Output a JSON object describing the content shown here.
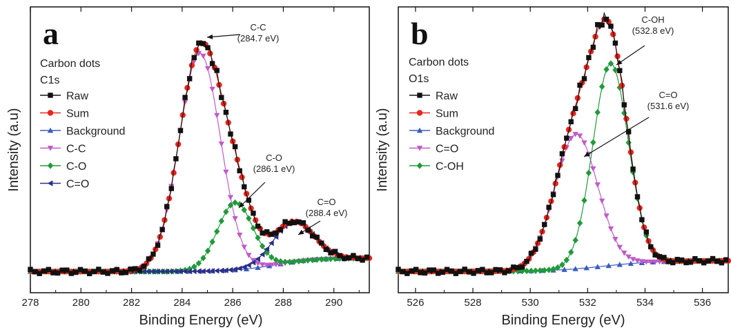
{
  "colors": {
    "Raw": "#111111",
    "Sum": "#e8261e",
    "Background": "#3a5bbd",
    "C-C": "#c05ac8",
    "C-O": "#1f9a3a",
    "C=O_a": "#2c2f86",
    "C=O_b": "#c05ac8",
    "C-OH": "#1f9a3a"
  },
  "chart_data": [
    {
      "panel": "a",
      "type": "line",
      "sample": "Carbon dots",
      "core_level": "C1s",
      "xlabel": "Binding Energy (eV)",
      "ylabel": "Intensity (a.u)",
      "xlim": [
        278,
        291.4
      ],
      "ylim": [
        0,
        1
      ],
      "xticks": [
        "278",
        "280",
        "282",
        "284",
        "286",
        "288",
        "290"
      ],
      "x_reversed": false,
      "legend": [
        "Raw",
        "Sum",
        "Background",
        "C-C",
        "C-O",
        "C=O"
      ],
      "legend_position": "top-left",
      "marker_shapes": {
        "Raw": "square",
        "Sum": "circle",
        "Background": "triangle-up",
        "C-C": "triangle-down",
        "C-O": "diamond",
        "C=O": "triangle-left"
      },
      "background": {
        "base": 0.03,
        "step": 0.05,
        "center": 287.7,
        "width": 0.8
      },
      "components": [
        {
          "name": "C-C",
          "center": 284.7,
          "height": 0.81,
          "sigma": 0.82
        },
        {
          "name": "C-O",
          "center": 286.1,
          "height": 0.25,
          "sigma": 0.7
        },
        {
          "name": "C=O",
          "center": 288.4,
          "height": 0.15,
          "sigma": 0.8
        }
      ],
      "annotations": [
        {
          "label": "C-C",
          "value": "(284.7 eV)",
          "target": "C-C"
        },
        {
          "label": "C-O",
          "value": "(286.1 eV)",
          "target": "C-O"
        },
        {
          "label": "C=O",
          "value": "(288.4 eV)",
          "target": "C=O"
        }
      ]
    },
    {
      "panel": "b",
      "type": "line",
      "sample": "Carbon dots",
      "core_level": "O1s",
      "xlabel": "Binding Energy (eV)",
      "ylabel": "Intensity (a.u)",
      "xlim": [
        525.4,
        536.9
      ],
      "ylim": [
        0,
        1
      ],
      "xticks": [
        "526",
        "528",
        "530",
        "532",
        "534",
        "536"
      ],
      "x_reversed": false,
      "legend": [
        "Raw",
        "Sum",
        "Background",
        "C=O",
        "C-OH"
      ],
      "legend_position": "top-left",
      "marker_shapes": {
        "Raw": "square",
        "Sum": "circle",
        "Background": "triangle-up",
        "C=O": "triangle-down",
        "C-OH": "diamond"
      },
      "background": {
        "base": 0.02,
        "step": 0.04,
        "center": 532.6,
        "width": 0.9
      },
      "components": [
        {
          "name": "C=O",
          "center": 531.6,
          "height": 0.5,
          "sigma": 0.75
        },
        {
          "name": "C-OH",
          "center": 532.8,
          "height": 0.75,
          "sigma": 0.62
        }
      ],
      "annotations": [
        {
          "label": "C-OH",
          "value": "(532.8 eV)",
          "target": "C-OH"
        },
        {
          "label": "C=O",
          "value": "(531.6 eV)",
          "target": "C=O"
        }
      ]
    }
  ]
}
